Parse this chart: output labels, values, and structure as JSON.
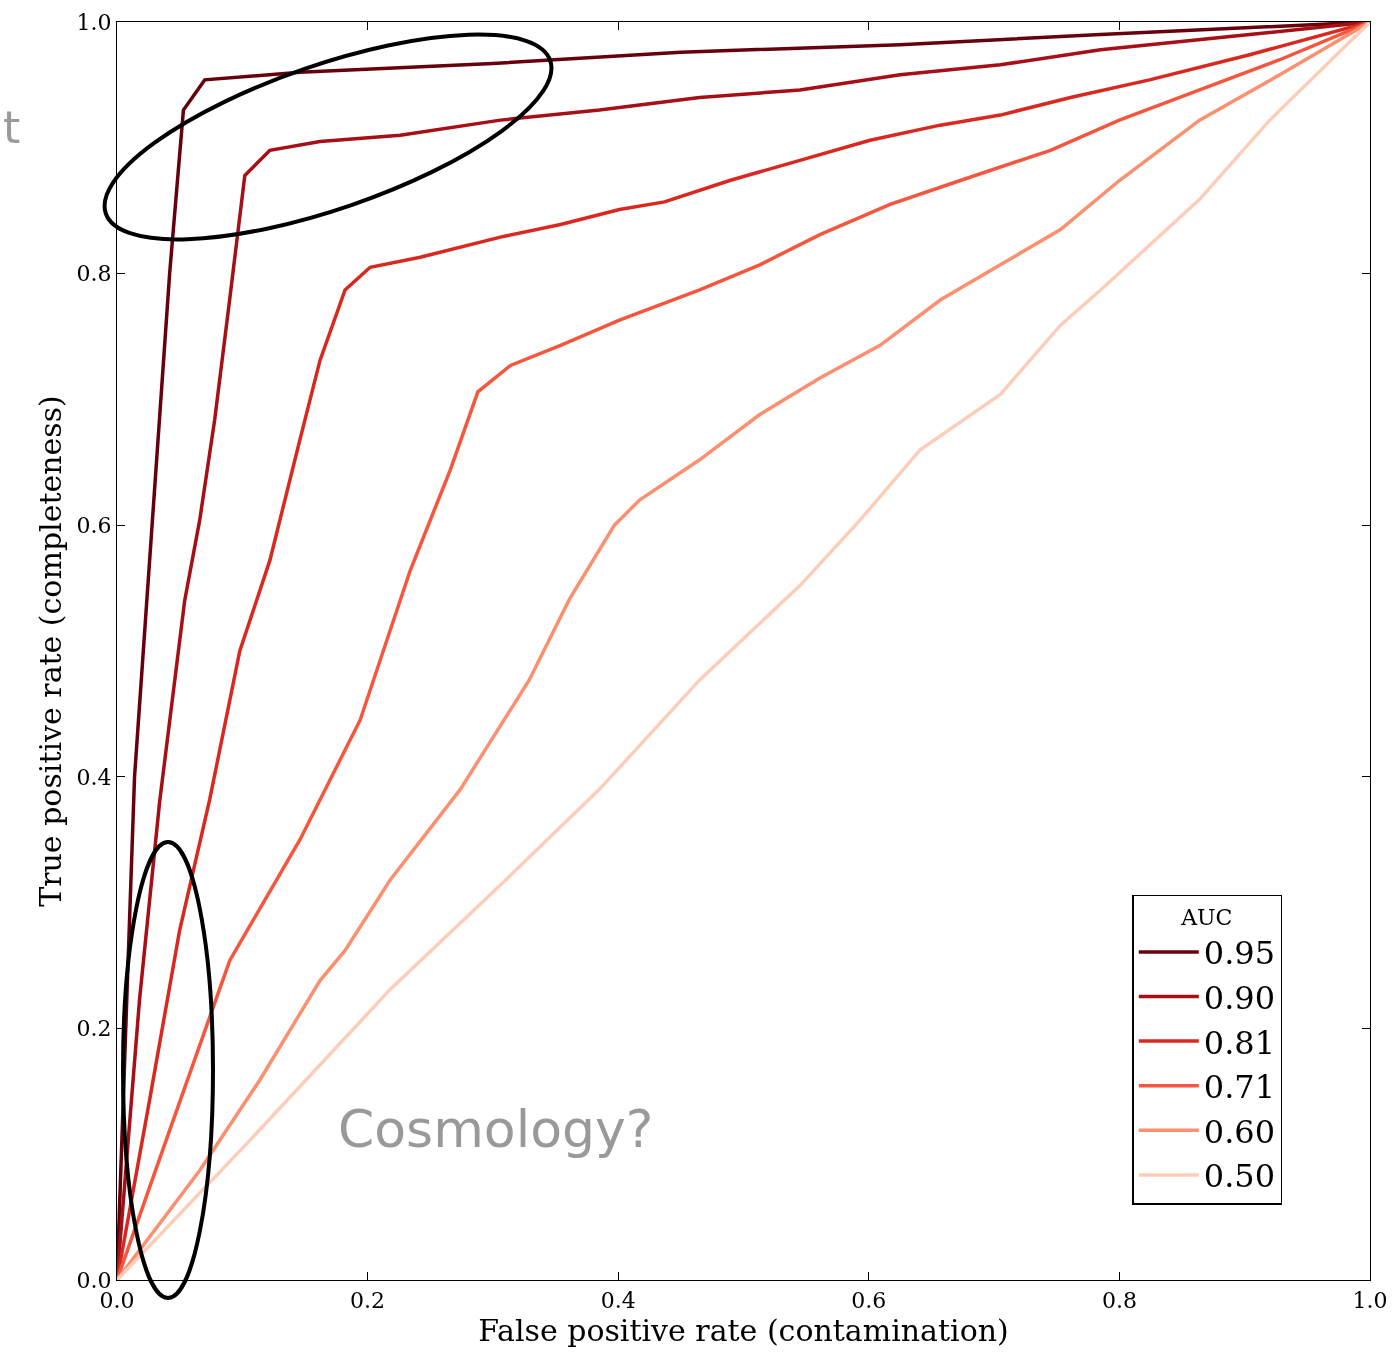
{
  "chart_data": {
    "type": "line",
    "xlabel": "False positive rate (contamination)",
    "ylabel": "True positive rate (completeness)",
    "legend_title": "AUC",
    "legend": "bottom right",
    "grid": false,
    "marker": "none",
    "line_style": "solid",
    "xlim": [
      0,
      1
    ],
    "ylim": [
      0,
      1
    ],
    "xticks": [
      {
        "value": 0,
        "label": "0.0"
      },
      0.2,
      0.4,
      0.6,
      0.8,
      {
        "value": 1,
        "label": "1.0"
      }
    ],
    "yticks": [
      {
        "value": 0,
        "label": "0.0"
      },
      0.2,
      0.4,
      0.6,
      0.8,
      {
        "value": 1,
        "label": "1.0"
      }
    ],
    "annotations": [
      "Cosmology?",
      "t"
    ],
    "series": [
      {
        "name": "0.95",
        "color": "#67000d",
        "x": [
          0,
          0.014,
          0.028,
          0.042,
          0.053,
          0.07,
          0.146,
          0.3,
          0.45,
          0.625,
          0.785,
          1
        ],
        "values": [
          0,
          0.4,
          0.6,
          0.8,
          0.93,
          0.954,
          0.96,
          0.967,
          0.976,
          0.982,
          0.99,
          1
        ]
      },
      {
        "name": "0.90",
        "color": "#a50f15",
        "x": [
          0,
          0.018,
          0.034,
          0.054,
          0.066,
          0.078,
          0.09,
          0.102,
          0.122,
          0.162,
          0.226,
          0.306,
          0.385,
          0.465,
          0.545,
          0.625,
          0.705,
          0.785,
          0.904,
          1
        ],
        "values": [
          0,
          0.223,
          0.38,
          0.54,
          0.604,
          0.684,
          0.78,
          0.878,
          0.898,
          0.905,
          0.91,
          0.922,
          0.93,
          0.94,
          0.946,
          0.958,
          0.966,
          0.978,
          0.99,
          1
        ]
      },
      {
        "name": "0.81",
        "color": "#d9281f",
        "x": [
          0,
          0.026,
          0.05,
          0.074,
          0.098,
          0.122,
          0.146,
          0.162,
          0.182,
          0.202,
          0.242,
          0.306,
          0.354,
          0.401,
          0.437,
          0.489,
          0.545,
          0.601,
          0.657,
          0.705,
          0.761,
          0.824,
          0.904,
          1
        ],
        "values": [
          0,
          0.143,
          0.278,
          0.382,
          0.5,
          0.572,
          0.668,
          0.731,
          0.787,
          0.805,
          0.813,
          0.829,
          0.839,
          0.851,
          0.857,
          0.874,
          0.89,
          0.906,
          0.918,
          0.926,
          0.94,
          0.954,
          0.974,
          1
        ]
      },
      {
        "name": "0.71",
        "color": "#f5563e",
        "x": [
          0,
          0.042,
          0.09,
          0.146,
          0.194,
          0.234,
          0.266,
          0.288,
          0.314,
          0.354,
          0.401,
          0.465,
          0.513,
          0.561,
          0.617,
          0.673,
          0.745,
          0.8,
          0.864,
          0.928,
          1
        ],
        "values": [
          0,
          0.119,
          0.254,
          0.35,
          0.445,
          0.564,
          0.644,
          0.706,
          0.727,
          0.743,
          0.763,
          0.787,
          0.807,
          0.831,
          0.855,
          0.874,
          0.898,
          0.922,
          0.946,
          0.97,
          1
        ]
      },
      {
        "name": "0.60",
        "color": "#fc8f6f",
        "x": [
          0,
          0.066,
          0.114,
          0.162,
          0.182,
          0.218,
          0.274,
          0.329,
          0.361,
          0.397,
          0.417,
          0.465,
          0.513,
          0.561,
          0.609,
          0.657,
          0.705,
          0.753,
          0.8,
          0.864,
          0.928,
          1
        ],
        "values": [
          0,
          0.087,
          0.159,
          0.238,
          0.262,
          0.318,
          0.39,
          0.477,
          0.541,
          0.6,
          0.62,
          0.652,
          0.688,
          0.717,
          0.743,
          0.779,
          0.807,
          0.835,
          0.874,
          0.922,
          0.958,
          1
        ]
      },
      {
        "name": "0.50",
        "color": "#fdcdb9",
        "x": [
          0,
          0.106,
          0.218,
          0.306,
          0.385,
          0.465,
          0.545,
          0.593,
          0.641,
          0.705,
          0.753,
          0.785,
          0.864,
          0.92,
          1
        ],
        "values": [
          0,
          0.111,
          0.231,
          0.314,
          0.39,
          0.477,
          0.552,
          0.604,
          0.66,
          0.704,
          0.759,
          0.787,
          0.859,
          0.922,
          1
        ]
      }
    ]
  }
}
